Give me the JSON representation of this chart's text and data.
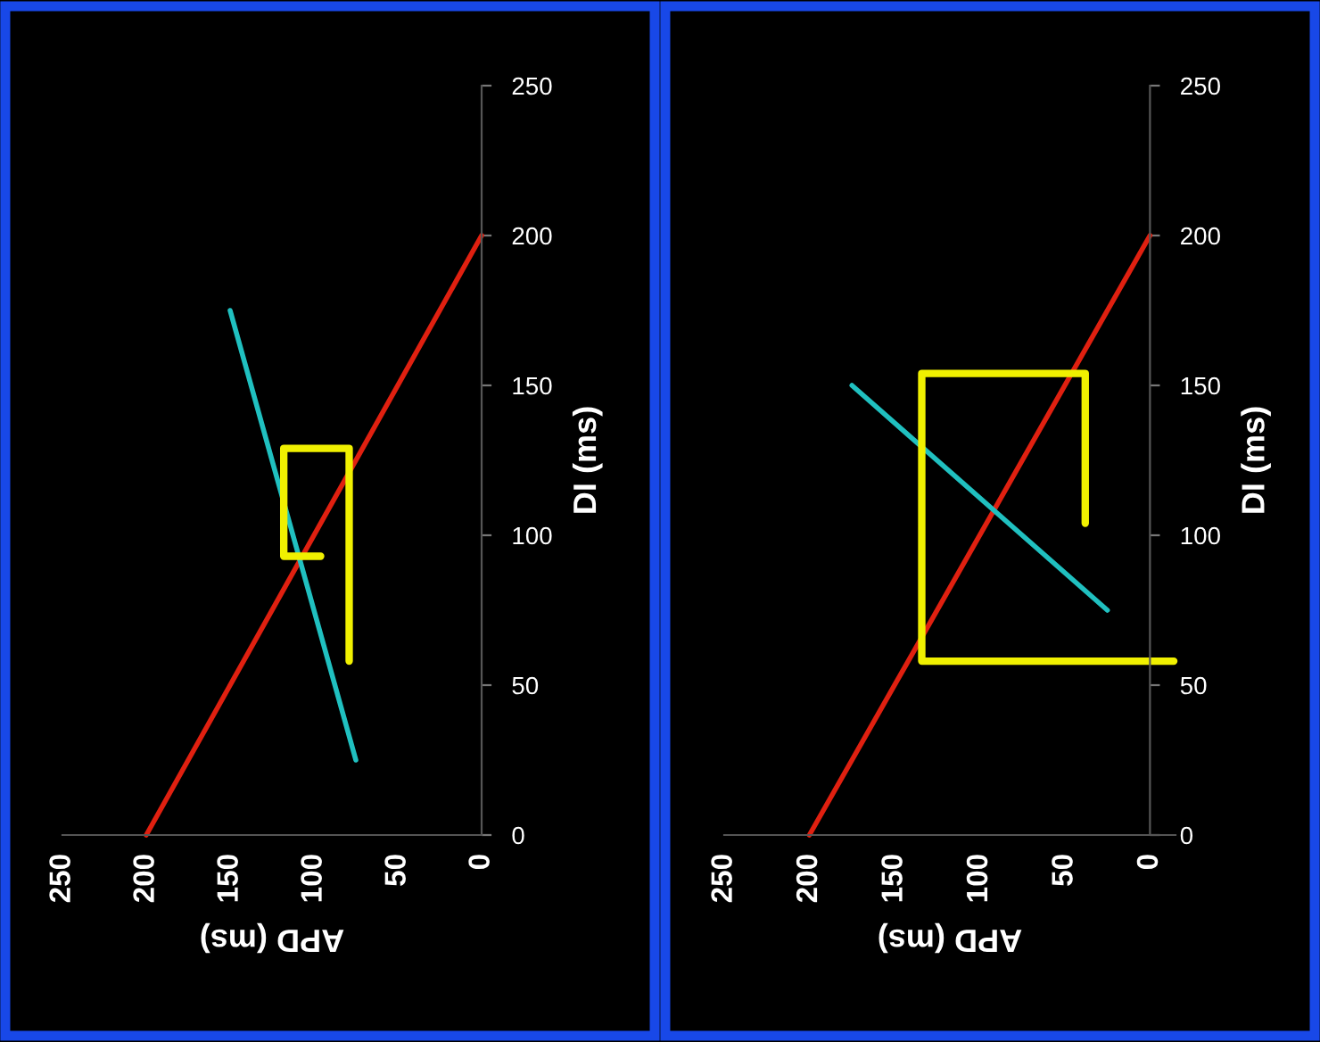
{
  "chart_data": [
    {
      "type": "line",
      "xlabel": "APD (ms)",
      "ylabel": "DI (ms)",
      "xlim": [
        250,
        0
      ],
      "xticks": [
        250,
        200,
        150,
        100,
        50,
        0
      ],
      "ylim": [
        0,
        250
      ],
      "yticks": [
        0,
        50,
        100,
        150,
        200,
        250
      ],
      "grid": false,
      "legend": false,
      "marker": "none",
      "line_style": "solid",
      "series": [
        {
          "color": "#e02010",
          "x": [
            200,
            0
          ],
          "values": [
            0,
            200
          ]
        },
        {
          "color": "#20c0c0",
          "x": [
            75,
            150
          ],
          "values": [
            25,
            175
          ]
        },
        {
          "color": "#f0f000",
          "x": [
            79,
            79,
            118,
            118,
            96
          ],
          "values": [
            58,
            129,
            129,
            93,
            93
          ]
        }
      ]
    },
    {
      "type": "line",
      "xlabel": "APD (ms)",
      "ylabel": "DI (ms)",
      "xlim": [
        250,
        -15
      ],
      "xticks": [
        250,
        200,
        150,
        100,
        50,
        0
      ],
      "ylim": [
        0,
        250
      ],
      "yticks": [
        0,
        50,
        100,
        150,
        200,
        250
      ],
      "grid": false,
      "legend": false,
      "marker": "none",
      "line_style": "solid",
      "series": [
        {
          "color": "#e02010",
          "x": [
            200,
            0
          ],
          "values": [
            0,
            200
          ]
        },
        {
          "color": "#20c0c0",
          "x": [
            25,
            175
          ],
          "values": [
            75,
            150
          ]
        },
        {
          "color": "#f0f000",
          "x": [
            38,
            38,
            134,
            134,
            -14
          ],
          "values": [
            104,
            154,
            154,
            58,
            58
          ]
        }
      ]
    }
  ]
}
